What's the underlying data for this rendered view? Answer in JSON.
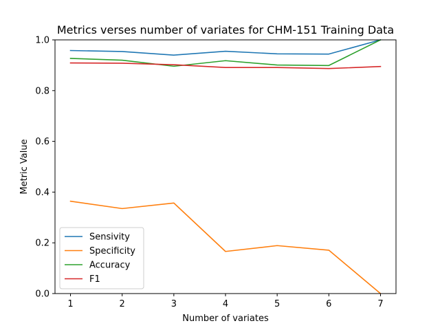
{
  "chart_data": {
    "type": "line",
    "title": "Metrics verses number of variates for CHM-151 Training Data",
    "xlabel": "Number of variates",
    "ylabel": "Metric Value",
    "x": [
      1,
      2,
      3,
      4,
      5,
      6,
      7
    ],
    "xlim": [
      0.7,
      7.3
    ],
    "ylim": [
      0.0,
      1.0
    ],
    "xticks": [
      "1",
      "2",
      "3",
      "4",
      "5",
      "6",
      "7"
    ],
    "yticks": [
      "0.0",
      "0.2",
      "0.4",
      "0.6",
      "0.8",
      "1.0"
    ],
    "grid": false,
    "legend_position": "lower-left",
    "series": [
      {
        "name": "Sensivity",
        "color": "#1f77b4",
        "values": [
          0.958,
          0.954,
          0.94,
          0.955,
          0.945,
          0.944,
          1.0
        ]
      },
      {
        "name": "Specificity",
        "color": "#ff7f0e",
        "values": [
          0.364,
          0.335,
          0.357,
          0.166,
          0.189,
          0.171,
          0.0
        ]
      },
      {
        "name": "Accuracy",
        "color": "#2ca02c",
        "values": [
          0.927,
          0.92,
          0.896,
          0.918,
          0.901,
          0.899,
          1.0
        ]
      },
      {
        "name": "F1",
        "color": "#d62728",
        "values": [
          0.909,
          0.908,
          0.902,
          0.891,
          0.891,
          0.887,
          0.895
        ]
      }
    ]
  }
}
